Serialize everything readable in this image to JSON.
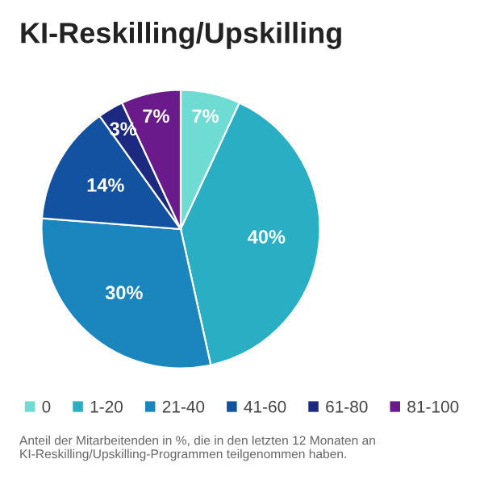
{
  "chart_data": {
    "type": "pie",
    "title": "KI-Reskilling/Upskilling",
    "categories": [
      "0",
      "1-20",
      "21-40",
      "41-60",
      "61-80",
      "81-100"
    ],
    "values": [
      7,
      40,
      30,
      14,
      3,
      7
    ],
    "value_labels": [
      "7%",
      "40%",
      "30%",
      "14%",
      "3%",
      "7%"
    ],
    "colors": [
      "#6fdcd4",
      "#2aaec3",
      "#1a86bd",
      "#1352a0",
      "#1b2a80",
      "#6a1a8a"
    ],
    "legend": "bottom",
    "annotations": [
      "Anteil der Mitarbeitenden in %, die in den letzten 12 Monaten an KI-Reskilling/Upskilling-Programmen teilgenommen haben."
    ]
  }
}
